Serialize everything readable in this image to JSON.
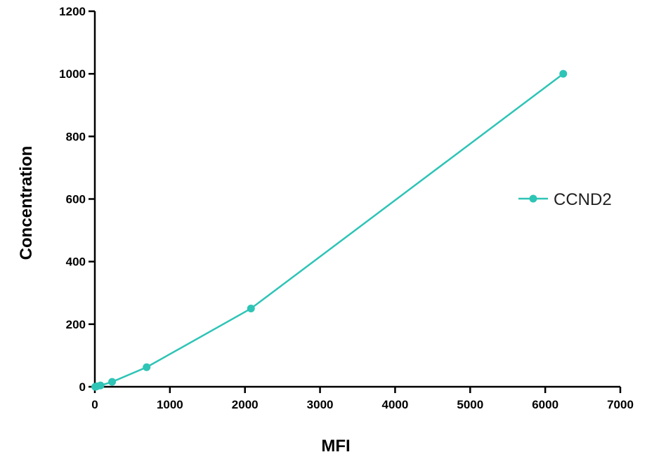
{
  "chart_data": {
    "type": "line",
    "title": "",
    "xlabel": "MFI",
    "ylabel": "Concentration",
    "xlim": [
      0,
      7000
    ],
    "ylim": [
      0,
      1200
    ],
    "xticks": [
      0,
      1000,
      2000,
      3000,
      4000,
      5000,
      6000,
      7000
    ],
    "yticks": [
      0,
      200,
      400,
      600,
      800,
      1000,
      1200
    ],
    "grid": false,
    "legend_position": "right",
    "series": [
      {
        "name": "CCND2",
        "color": "#2ec4b6",
        "marker": "circle",
        "x": [
          5,
          25,
          75,
          230,
          690,
          2080,
          6240
        ],
        "y": [
          0,
          1.37,
          4.12,
          15.6,
          62.5,
          250,
          1000
        ]
      }
    ]
  }
}
